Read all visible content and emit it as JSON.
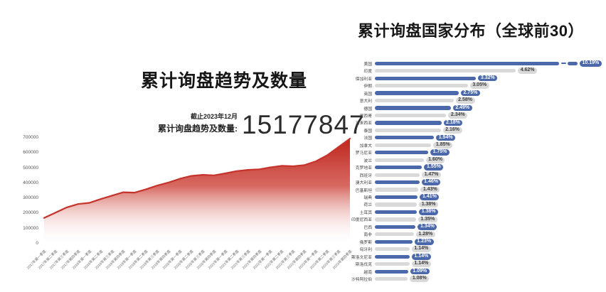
{
  "left_chart": {
    "title": "累计询盘趋势及数量",
    "as_of": "截止2023年12月",
    "total_label": "累计询盘趋势及数量:",
    "total_value": "15177847"
  },
  "right_chart": {
    "title": "累计询盘国家分布（全球前30）"
  },
  "colors": {
    "accent_red_line": "#c5332a",
    "accent_red_fill": "#bf241b",
    "bar_blue": "#4a68aa",
    "bar_gray": "#d9d9d9",
    "pill_blue_text": "#ffffff",
    "pill_gray_text": "#3c3c3c"
  },
  "chart_data": [
    {
      "type": "area",
      "title": "累计询盘趋势及数量",
      "xlabel": "",
      "ylabel": "",
      "ylim": [
        0,
        700000
      ],
      "yticks": [
        0,
        100000,
        200000,
        300000,
        400000,
        500000,
        600000,
        700000
      ],
      "grid": false,
      "legend": "none",
      "x": [
        "2017年第一季度",
        "2017年第二季度",
        "2017年第三季度",
        "2017年第四季度",
        "2018年第一季度",
        "2018年第二季度",
        "2018年第三季度",
        "2018年第四季度",
        "2019年第一季度",
        "2019年第二季度",
        "2019年第三季度",
        "2019年第四季度",
        "2020年第一季度",
        "2020年第二季度",
        "2020年第三季度",
        "2020年第四季度",
        "2021年第一季度",
        "2021年第二季度",
        "2021年第三季度",
        "2021年第四季度",
        "2022年第一季度",
        "2022年第二季度",
        "2022年第三季度",
        "2022年第四季度",
        "2023年第一季度",
        "2023年第二季度",
        "2023年第三季度",
        "2023年第四季度"
      ],
      "values": [
        170000,
        205000,
        240000,
        262000,
        270000,
        295000,
        318000,
        340000,
        338000,
        360000,
        385000,
        405000,
        430000,
        448000,
        455000,
        452000,
        465000,
        480000,
        488000,
        492000,
        505000,
        515000,
        512000,
        520000,
        545000,
        585000,
        640000,
        695000
      ]
    },
    {
      "type": "bar",
      "orientation": "horizontal",
      "title": "累计询盘国家分布（全球前30）",
      "legend": "none",
      "grid": false,
      "axis_break_on_first": true,
      "bar_colors": {
        "blue": "#4a68aa",
        "gray": "#d9d9d9"
      },
      "categories": [
        "美国",
        "印度",
        "保加利亚",
        "伊朗",
        "英国",
        "意大利",
        "德国",
        "墨西哥",
        "马来西亚",
        "泰国",
        "法国",
        "加拿大",
        "罗马尼亚",
        "波兰",
        "克罗地亚",
        "西班牙",
        "澳大利亚",
        "巴基斯坦",
        "瑞典",
        "荷兰",
        "土耳其",
        "印度尼西亚",
        "巴西",
        "南非",
        "俄罗斯",
        "匈牙利",
        "斯洛文尼亚",
        "斯洛伐克",
        "越南",
        "沙特阿拉伯"
      ],
      "values": [
        10.19,
        4.62,
        3.32,
        3.05,
        2.75,
        2.58,
        2.49,
        2.34,
        2.18,
        2.16,
        1.94,
        1.85,
        1.75,
        1.6,
        1.55,
        1.47,
        1.46,
        1.43,
        1.41,
        1.38,
        1.38,
        1.35,
        1.34,
        1.28,
        1.23,
        1.14,
        1.14,
        1.14,
        1.09,
        1.08
      ],
      "labels": [
        "10.19%",
        "4.62%",
        "3.32%",
        "3.05%",
        "2.75%",
        "2.58%",
        "2.49%",
        "2.34%",
        "2.18%",
        "2.16%",
        "1.94%",
        "1.85%",
        "1.75%",
        "1.60%",
        "1.55%",
        "1.47%",
        "1.46%",
        "1.43%",
        "1.41%",
        "1.38%",
        "1.38%",
        "1.35%",
        "1.34%",
        "1.28%",
        "1.23%",
        "1.14%",
        "1.14%",
        "1.14%",
        "1.09%",
        "1.08%"
      ]
    }
  ]
}
